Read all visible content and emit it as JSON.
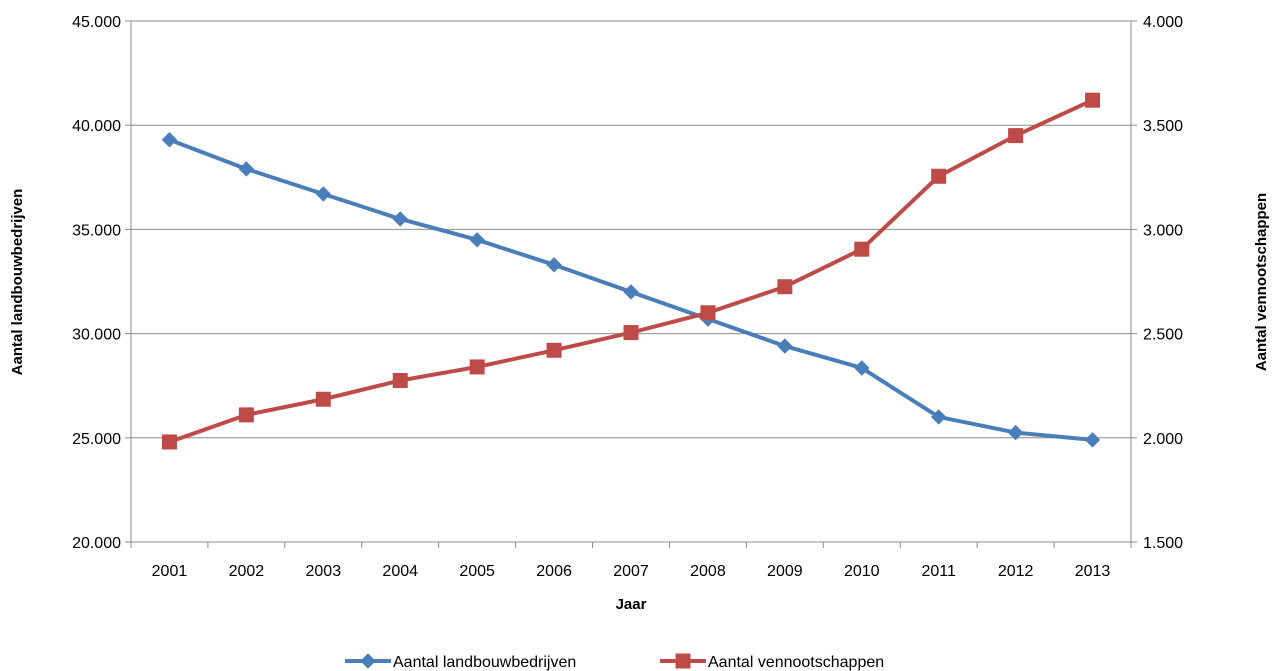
{
  "chart_data": {
    "type": "line",
    "title": "",
    "xlabel": "Jaar",
    "ylabel_left": "Aantal landbouwbedrijven",
    "ylabel_right": "Aantal vennootschappen",
    "categories": [
      "2001",
      "2002",
      "2003",
      "2004",
      "2005",
      "2006",
      "2007",
      "2008",
      "2009",
      "2010",
      "2011",
      "2012",
      "2013"
    ],
    "y_left": {
      "min": 20000,
      "max": 45000,
      "step": 5000,
      "ticks": [
        "20.000",
        "25.000",
        "30.000",
        "35.000",
        "40.000",
        "45.000"
      ]
    },
    "y_right": {
      "min": 1500,
      "max": 4000,
      "step": 500,
      "ticks": [
        "1.500",
        "2.000",
        "2.500",
        "3.000",
        "3.500",
        "4.000"
      ]
    },
    "grid": true,
    "legend_position": "bottom",
    "series": [
      {
        "name": "Aantal landbouwbedrijven",
        "axis": "left",
        "marker": "diamond",
        "color": "#4a7ebb",
        "values": [
          39300,
          37900,
          36700,
          35500,
          34500,
          33300,
          32000,
          30700,
          29400,
          28350,
          26000,
          25250,
          24900
        ]
      },
      {
        "name": "Aantal vennootschappen",
        "axis": "right",
        "marker": "square",
        "color": "#be4b48",
        "values": [
          1980,
          2110,
          2185,
          2275,
          2340,
          2420,
          2505,
          2600,
          2725,
          2905,
          3255,
          3450,
          3620
        ]
      }
    ]
  }
}
